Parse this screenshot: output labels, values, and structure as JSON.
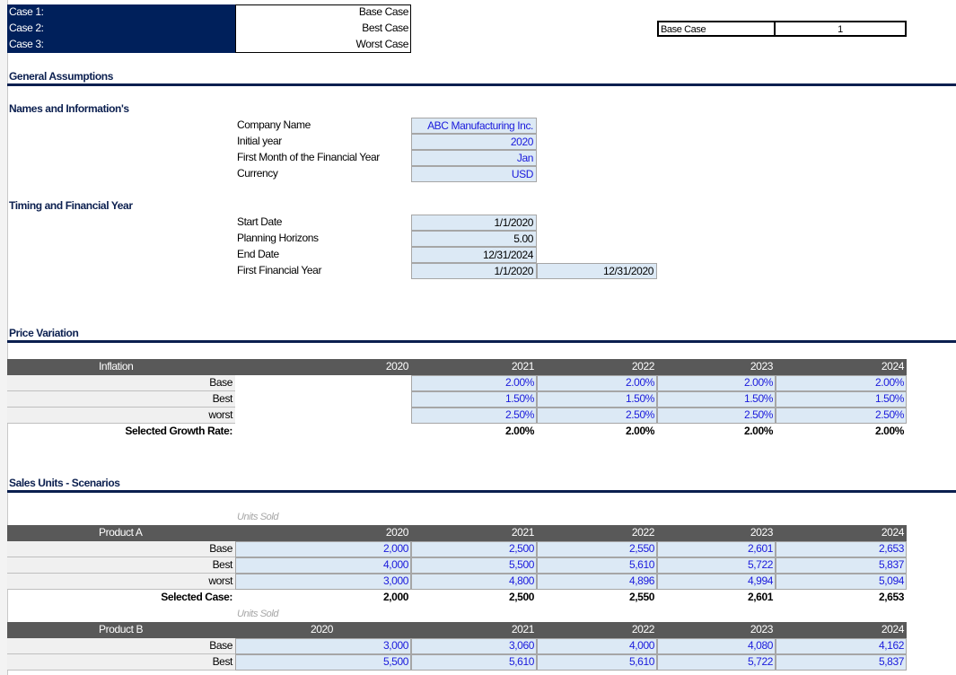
{
  "cases": {
    "labels": [
      "Case 1:",
      "Case 2:",
      "Case 3:"
    ],
    "values": [
      "Base Case",
      "Best Case",
      "Worst Case"
    ],
    "selected_name": "Base Case",
    "selected_index": "1"
  },
  "general": {
    "title": "General Assumptions",
    "names_title": "Names and  Information's",
    "names": [
      {
        "label": "Company Name",
        "value": "ABC Manufacturing Inc."
      },
      {
        "label": "Initial year",
        "value": "2020"
      },
      {
        "label": "First Month of the Financial Year",
        "value": "Jan"
      },
      {
        "label": "Currency",
        "value": "USD"
      }
    ],
    "timing_title": "Timing and Financial Year",
    "timing": [
      {
        "label": "Start Date",
        "value": "1/1/2020"
      },
      {
        "label": "Planning Horizons",
        "value": "5.00"
      },
      {
        "label": "End Date",
        "value": "12/31/2024"
      },
      {
        "label": "First Financial Year",
        "value": "1/1/2020",
        "extra": "12/31/2020"
      }
    ]
  },
  "price": {
    "title": "Price Variation",
    "header": "Inflation",
    "years": [
      "2020",
      "2021",
      "2022",
      "2023",
      "2024"
    ],
    "rows": [
      {
        "label": "Base",
        "values": [
          "2.00%",
          "2.00%",
          "2.00%",
          "2.00%"
        ]
      },
      {
        "label": "Best",
        "values": [
          "1.50%",
          "1.50%",
          "1.50%",
          "1.50%"
        ]
      },
      {
        "label": "worst",
        "values": [
          "2.50%",
          "2.50%",
          "2.50%",
          "2.50%"
        ]
      }
    ],
    "selected_label": "Selected Growth Rate:",
    "selected": [
      "2.00%",
      "2.00%",
      "2.00%",
      "2.00%"
    ]
  },
  "sales": {
    "title": "Sales Units - Scenarios",
    "units": "Units Sold",
    "product_a": {
      "name": "Product A",
      "years": [
        "2020",
        "2021",
        "2022",
        "2023",
        "2024"
      ],
      "rows": [
        {
          "label": "Base",
          "values": [
            "2,000",
            "2,500",
            "2,550",
            "2,601",
            "2,653"
          ]
        },
        {
          "label": "Best",
          "values": [
            "4,000",
            "5,500",
            "5,610",
            "5,722",
            "5,837"
          ]
        },
        {
          "label": "worst",
          "values": [
            "3,000",
            "4,800",
            "4,896",
            "4,994",
            "5,094"
          ]
        }
      ],
      "selected_label": "Selected Case:",
      "selected": [
        "2,000",
        "2,500",
        "2,550",
        "2,601",
        "2,653"
      ]
    },
    "product_b": {
      "name": "Product B",
      "years": [
        "2020",
        "2021",
        "2022",
        "2023",
        "2024"
      ],
      "rows": [
        {
          "label": "Base",
          "values": [
            "3,000",
            "3,060",
            "4,000",
            "4,080",
            "4,162"
          ]
        },
        {
          "label": "Best",
          "values": [
            "5,500",
            "5,610",
            "5,610",
            "5,722",
            "5,837"
          ]
        }
      ]
    }
  }
}
